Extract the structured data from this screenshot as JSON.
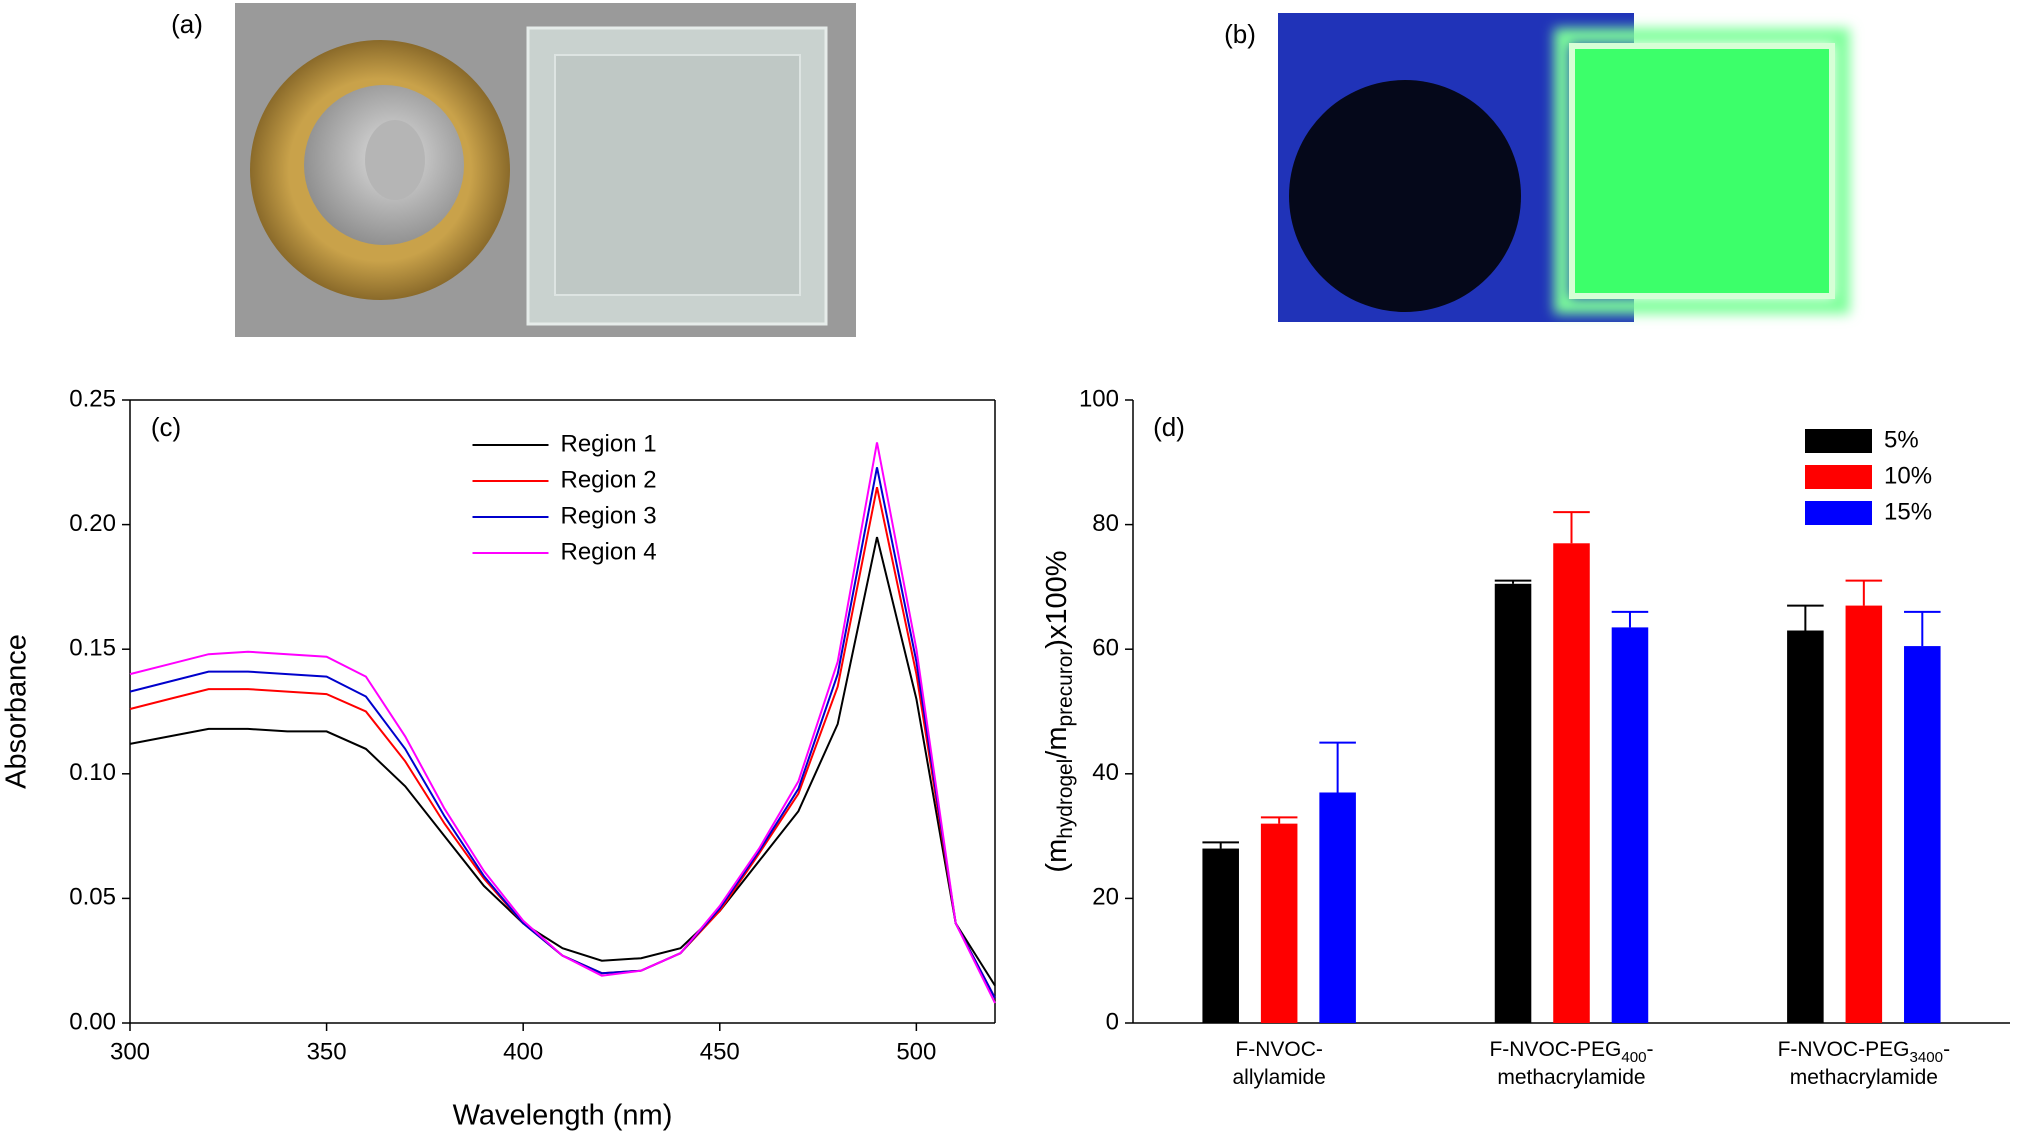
{
  "panel_labels": {
    "a": "(a)",
    "b": "(b)"
  },
  "chart_data": [
    {
      "type": "line",
      "panel_label": "(c)",
      "x_label": "Wavelength (nm)",
      "y_label": "Absorbance",
      "x": [
        300,
        310,
        320,
        330,
        340,
        350,
        360,
        370,
        380,
        390,
        400,
        410,
        420,
        430,
        440,
        450,
        460,
        470,
        480,
        490,
        500,
        510,
        520
      ],
      "series": [
        {
          "name": "Region 1",
          "color": "#000000",
          "values": [
            0.112,
            0.115,
            0.118,
            0.118,
            0.117,
            0.117,
            0.11,
            0.095,
            0.075,
            0.055,
            0.04,
            0.03,
            0.025,
            0.026,
            0.03,
            0.045,
            0.065,
            0.085,
            0.12,
            0.195,
            0.13,
            0.04,
            0.015
          ]
        },
        {
          "name": "Region 2",
          "color": "#ff0000",
          "values": [
            0.126,
            0.13,
            0.134,
            0.134,
            0.133,
            0.132,
            0.125,
            0.105,
            0.08,
            0.058,
            0.04,
            0.027,
            0.02,
            0.021,
            0.028,
            0.045,
            0.068,
            0.092,
            0.135,
            0.215,
            0.14,
            0.04,
            0.01
          ]
        },
        {
          "name": "Region 3",
          "color": "#0000cc",
          "values": [
            0.133,
            0.137,
            0.141,
            0.141,
            0.14,
            0.139,
            0.131,
            0.11,
            0.083,
            0.059,
            0.04,
            0.027,
            0.02,
            0.021,
            0.028,
            0.046,
            0.069,
            0.094,
            0.14,
            0.223,
            0.145,
            0.04,
            0.01
          ]
        },
        {
          "name": "Region 4",
          "color": "#ff00ff",
          "values": [
            0.14,
            0.144,
            0.148,
            0.149,
            0.148,
            0.147,
            0.139,
            0.115,
            0.086,
            0.061,
            0.041,
            0.027,
            0.019,
            0.021,
            0.028,
            0.047,
            0.07,
            0.097,
            0.145,
            0.233,
            0.15,
            0.04,
            0.008
          ]
        }
      ],
      "xlim": [
        300,
        520
      ],
      "xticks": [
        300,
        350,
        400,
        450,
        500
      ],
      "ylim": [
        0,
        0.25
      ],
      "yticks": [
        {
          "value": 0,
          "label": "0.00"
        },
        0.05,
        {
          "value": 0.1,
          "label": "0.10"
        },
        0.15,
        {
          "value": 0.2,
          "label": "0.20"
        },
        0.25
      ],
      "legend": "upper center",
      "box": true
    },
    {
      "type": "bar",
      "panel_label": "(d)",
      "y_label": "(mhydrogel/mprecuror)x100%",
      "categories": [
        "F-NVOC-allylamide",
        "F-NVOC-PEG400-methacrylamide",
        "F-NVOC-PEG3400-methacrylamide"
      ],
      "series": [
        {
          "name": "5%",
          "color": "#000000",
          "values": [
            28,
            70.5,
            63
          ],
          "errors": [
            1,
            0.5,
            4
          ]
        },
        {
          "name": "10%",
          "color": "#ff0000",
          "values": [
            32,
            77,
            67
          ],
          "errors": [
            1,
            5,
            4
          ]
        },
        {
          "name": "15%",
          "color": "#0000ff",
          "values": [
            37,
            63.5,
            60.5
          ],
          "errors": [
            8,
            2.5,
            5.5
          ]
        }
      ],
      "ylim": [
        0,
        100
      ],
      "yticks": [
        0,
        20,
        40,
        60,
        80,
        100
      ],
      "legend": "upper right",
      "box": false
    }
  ]
}
